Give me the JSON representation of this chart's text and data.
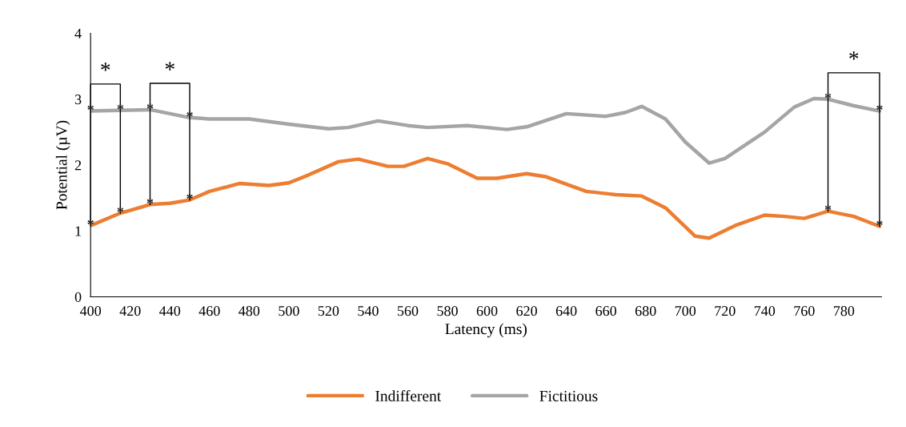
{
  "chart_data": {
    "type": "line",
    "xlabel": "Latency (ms)",
    "ylabel": "Potential (µV)",
    "xlim": [
      400,
      799
    ],
    "xticks": [
      400,
      420,
      440,
      460,
      480,
      500,
      520,
      540,
      560,
      580,
      600,
      620,
      640,
      660,
      680,
      700,
      720,
      740,
      760,
      780
    ],
    "ylim": [
      0,
      4
    ],
    "yticks": [
      0,
      1,
      2,
      3,
      4
    ],
    "grid": false,
    "legend": "bottom",
    "marker": "none",
    "line_style": "solid",
    "series": [
      {
        "name": "Indifferent",
        "color": "#ed7d31",
        "x": [
          400,
          415,
          430,
          440,
          450,
          460,
          475,
          490,
          500,
          510,
          525,
          535,
          550,
          558,
          570,
          580,
          595,
          605,
          620,
          630,
          650,
          665,
          678,
          690,
          705,
          712,
          725,
          740,
          750,
          760,
          772,
          785,
          798
        ],
        "values": [
          1.08,
          1.27,
          1.4,
          1.42,
          1.47,
          1.6,
          1.72,
          1.69,
          1.73,
          1.85,
          2.05,
          2.09,
          1.98,
          1.98,
          2.1,
          2.02,
          1.8,
          1.8,
          1.87,
          1.82,
          1.6,
          1.55,
          1.53,
          1.35,
          0.92,
          0.89,
          1.08,
          1.24,
          1.22,
          1.19,
          1.3,
          1.22,
          1.07
        ]
      },
      {
        "name": "Fictitious",
        "color": "#a5a5a5",
        "x": [
          400,
          415,
          430,
          450,
          460,
          480,
          500,
          520,
          530,
          545,
          560,
          570,
          590,
          610,
          620,
          640,
          660,
          670,
          678,
          690,
          700,
          712,
          720,
          740,
          755,
          765,
          772,
          785,
          798
        ],
        "values": [
          2.82,
          2.83,
          2.84,
          2.72,
          2.7,
          2.7,
          2.62,
          2.55,
          2.57,
          2.67,
          2.6,
          2.57,
          2.6,
          2.54,
          2.58,
          2.78,
          2.74,
          2.8,
          2.89,
          2.7,
          2.35,
          2.03,
          2.1,
          2.5,
          2.88,
          3.01,
          3.0,
          2.9,
          2.82
        ]
      }
    ],
    "annotations": [
      "*",
      "*",
      "*",
      {
        "text": "*",
        "x": 400,
        "y": 2.82
      },
      {
        "text": "*",
        "x": 400,
        "y": 1.08
      },
      {
        "text": "*",
        "x": 415,
        "y": 2.83
      },
      {
        "text": "*",
        "x": 415,
        "y": 1.27
      },
      {
        "text": "*",
        "x": 430,
        "y": 2.84
      },
      {
        "text": "*",
        "x": 430,
        "y": 1.4
      },
      {
        "text": "*",
        "x": 450,
        "y": 2.72
      },
      {
        "text": "*",
        "x": 450,
        "y": 1.47
      },
      {
        "text": "*",
        "x": 772,
        "y": 3.0
      },
      {
        "text": "*",
        "x": 772,
        "y": 1.3
      },
      {
        "text": "*",
        "x": 798,
        "y": 2.82
      },
      {
        "text": "*",
        "x": 798,
        "y": 1.07
      }
    ]
  }
}
